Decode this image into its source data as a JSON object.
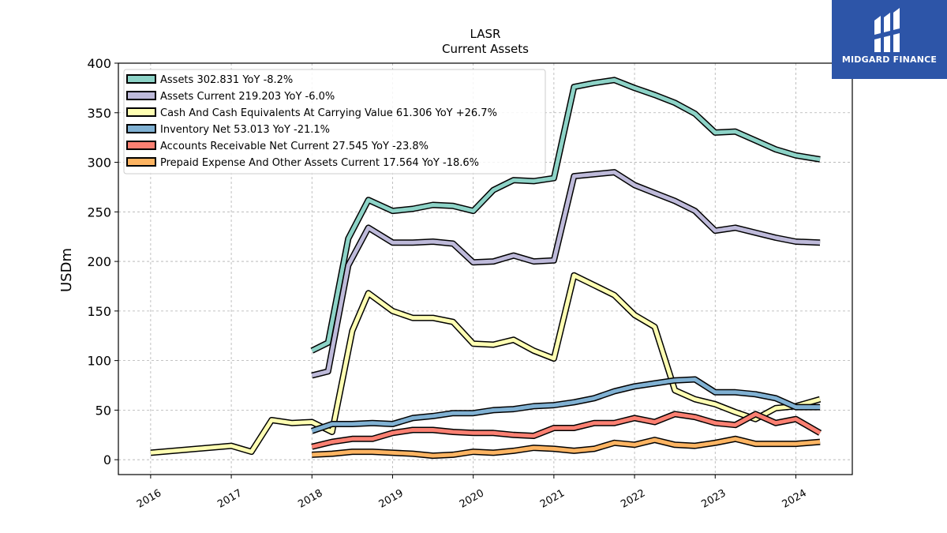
{
  "brand": {
    "name": "MIDGARD FINANCE",
    "color": "#2d55a8"
  },
  "chart_data": {
    "type": "line",
    "title": "LASR",
    "subtitle": "Current  Assets",
    "xlabel": "",
    "ylabel": "USDm",
    "xlim": [
      2015.6,
      2024.7
    ],
    "ylim": [
      -15,
      400
    ],
    "xticks": [
      "2016",
      "2017",
      "2018",
      "2019",
      "2020",
      "2021",
      "2022",
      "2023",
      "2024"
    ],
    "yticks": [
      0,
      50,
      100,
      150,
      200,
      250,
      300,
      350,
      400
    ],
    "grid": true,
    "legend_position": "top-left",
    "series": [
      {
        "name": "Assets  302.831 YoY -8.2%",
        "color": "#8dd3c7",
        "x": [
          2018.0,
          2018.2,
          2018.45,
          2018.7,
          2019.0,
          2019.25,
          2019.5,
          2019.75,
          2020.0,
          2020.25,
          2020.5,
          2020.75,
          2021.0,
          2021.25,
          2021.5,
          2021.75,
          2022.0,
          2022.25,
          2022.5,
          2022.75,
          2023.0,
          2023.25,
          2023.5,
          2023.75,
          2024.0,
          2024.3
        ],
        "values": [
          110,
          118,
          223,
          262,
          251,
          253,
          257,
          256,
          251,
          272,
          282,
          281,
          284,
          376,
          380,
          383,
          375,
          368,
          360,
          349,
          330,
          331,
          322,
          313,
          307,
          303
        ]
      },
      {
        "name": "Assets Current  219.203 YoY -6.0%",
        "color": "#bebada",
        "x": [
          2018.0,
          2018.2,
          2018.45,
          2018.7,
          2019.0,
          2019.25,
          2019.5,
          2019.75,
          2020.0,
          2020.25,
          2020.5,
          2020.75,
          2021.0,
          2021.25,
          2021.5,
          2021.75,
          2022.0,
          2022.25,
          2022.5,
          2022.75,
          2023.0,
          2023.25,
          2023.5,
          2023.75,
          2024.0,
          2024.3
        ],
        "values": [
          85,
          89,
          196,
          234,
          219,
          219,
          220,
          218,
          199,
          200,
          206,
          200,
          201,
          286,
          288,
          290,
          277,
          269,
          261,
          251,
          231,
          234,
          229,
          224,
          220,
          219
        ]
      },
      {
        "name": "Cash And Cash Equivalents At Carrying Value  61.306 YoY +26.7%",
        "color": "#ffffb3",
        "x": [
          2016.0,
          2017.0,
          2017.25,
          2017.5,
          2017.75,
          2018.0,
          2018.25,
          2018.5,
          2018.7,
          2019.0,
          2019.25,
          2019.5,
          2019.75,
          2020.0,
          2020.25,
          2020.5,
          2020.75,
          2021.0,
          2021.25,
          2021.5,
          2021.75,
          2022.0,
          2022.25,
          2022.5,
          2022.75,
          2023.0,
          2023.25,
          2023.5,
          2023.75,
          2024.0,
          2024.3
        ],
        "values": [
          7,
          14,
          8,
          40,
          37,
          38,
          28,
          130,
          168,
          150,
          143,
          143,
          139,
          117,
          116,
          121,
          110,
          102,
          186,
          176,
          166,
          146,
          134,
          70,
          61,
          56,
          48,
          41,
          52,
          54,
          61
        ]
      },
      {
        "name": "Inventory Net  53.013 YoY -21.1%",
        "color": "#80b1d3",
        "x": [
          2018.0,
          2018.25,
          2018.5,
          2018.75,
          2019.0,
          2019.25,
          2019.5,
          2019.75,
          2020.0,
          2020.25,
          2020.5,
          2020.75,
          2021.0,
          2021.25,
          2021.5,
          2021.75,
          2022.0,
          2022.25,
          2022.5,
          2022.75,
          2023.0,
          2023.25,
          2023.5,
          2023.75,
          2024.0,
          2024.3
        ],
        "values": [
          29,
          36,
          36,
          37,
          36,
          42,
          44,
          47,
          47,
          50,
          51,
          54,
          55,
          58,
          62,
          69,
          74,
          77,
          80,
          81,
          68,
          68,
          66,
          62,
          53,
          53
        ]
      },
      {
        "name": "Accounts Receivable Net Current  27.545 YoY -23.8%",
        "color": "#fb8072",
        "x": [
          2018.0,
          2018.25,
          2018.5,
          2018.75,
          2019.0,
          2019.25,
          2019.5,
          2019.75,
          2020.0,
          2020.25,
          2020.5,
          2020.75,
          2021.0,
          2021.25,
          2021.5,
          2021.75,
          2022.0,
          2022.25,
          2022.5,
          2022.75,
          2023.0,
          2023.25,
          2023.5,
          2023.75,
          2024.0,
          2024.3
        ],
        "values": [
          13,
          18,
          21,
          21,
          27,
          30,
          30,
          28,
          27,
          27,
          25,
          24,
          32,
          32,
          37,
          37,
          42,
          38,
          46,
          43,
          37,
          35,
          46,
          37,
          41,
          27
        ]
      },
      {
        "name": "Prepaid Expense And Other Assets Current  17.564 YoY -18.6%",
        "color": "#fdb462",
        "x": [
          2018.0,
          2018.25,
          2018.5,
          2018.75,
          2019.0,
          2019.25,
          2019.5,
          2019.75,
          2020.0,
          2020.25,
          2020.5,
          2020.75,
          2021.0,
          2021.25,
          2021.5,
          2021.75,
          2022.0,
          2022.25,
          2022.5,
          2022.75,
          2023.0,
          2023.25,
          2023.5,
          2023.75,
          2024.0,
          2024.3
        ],
        "values": [
          5,
          6,
          8,
          8,
          7,
          6,
          4,
          5,
          8,
          7,
          9,
          12,
          11,
          9,
          11,
          17,
          15,
          20,
          15,
          14,
          17,
          21,
          16,
          16,
          16,
          18
        ]
      }
    ]
  }
}
